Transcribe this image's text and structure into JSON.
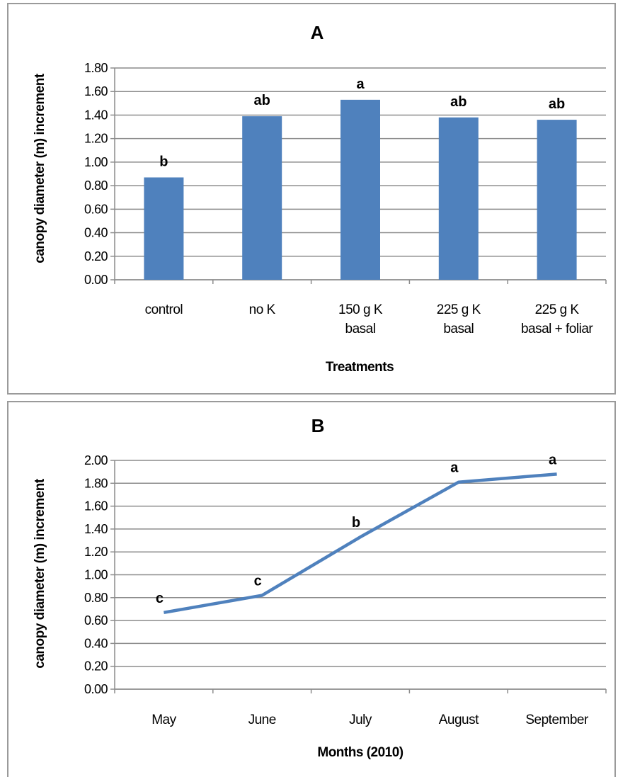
{
  "chart_data": [
    {
      "type": "bar",
      "title": "A",
      "xlabel": "Treatments",
      "ylabel": "canopy diameter (m) increment",
      "categories": [
        [
          "control"
        ],
        [
          "no K"
        ],
        [
          "150 g K",
          "basal"
        ],
        [
          "225 g K",
          "basal"
        ],
        [
          "225 g K",
          "basal + foliar"
        ]
      ],
      "values": [
        0.87,
        1.39,
        1.53,
        1.38,
        1.36
      ],
      "annotations": [
        "b",
        "ab",
        "a",
        "ab",
        "ab"
      ],
      "ylim": [
        0,
        1.8
      ],
      "yticks": [
        "0.00",
        "0.20",
        "0.40",
        "0.60",
        "0.80",
        "1.00",
        "1.20",
        "1.40",
        "1.60",
        "1.80"
      ],
      "grid": true,
      "color": "#4f81bd"
    },
    {
      "type": "line",
      "title": "B",
      "xlabel": "Months (2010)",
      "ylabel": "canopy diameter (m) increment",
      "categories": [
        "May",
        "June",
        "July",
        "August",
        "September"
      ],
      "values": [
        0.67,
        0.82,
        1.33,
        1.81,
        1.88
      ],
      "annotations": [
        "c",
        "c",
        "b",
        "a",
        "a"
      ],
      "ylim": [
        0,
        2.0
      ],
      "yticks": [
        "0.00",
        "0.20",
        "0.40",
        "0.60",
        "0.80",
        "1.00",
        "1.20",
        "1.40",
        "1.60",
        "1.80",
        "2.00"
      ],
      "grid": true,
      "color": "#4f81bd"
    }
  ]
}
